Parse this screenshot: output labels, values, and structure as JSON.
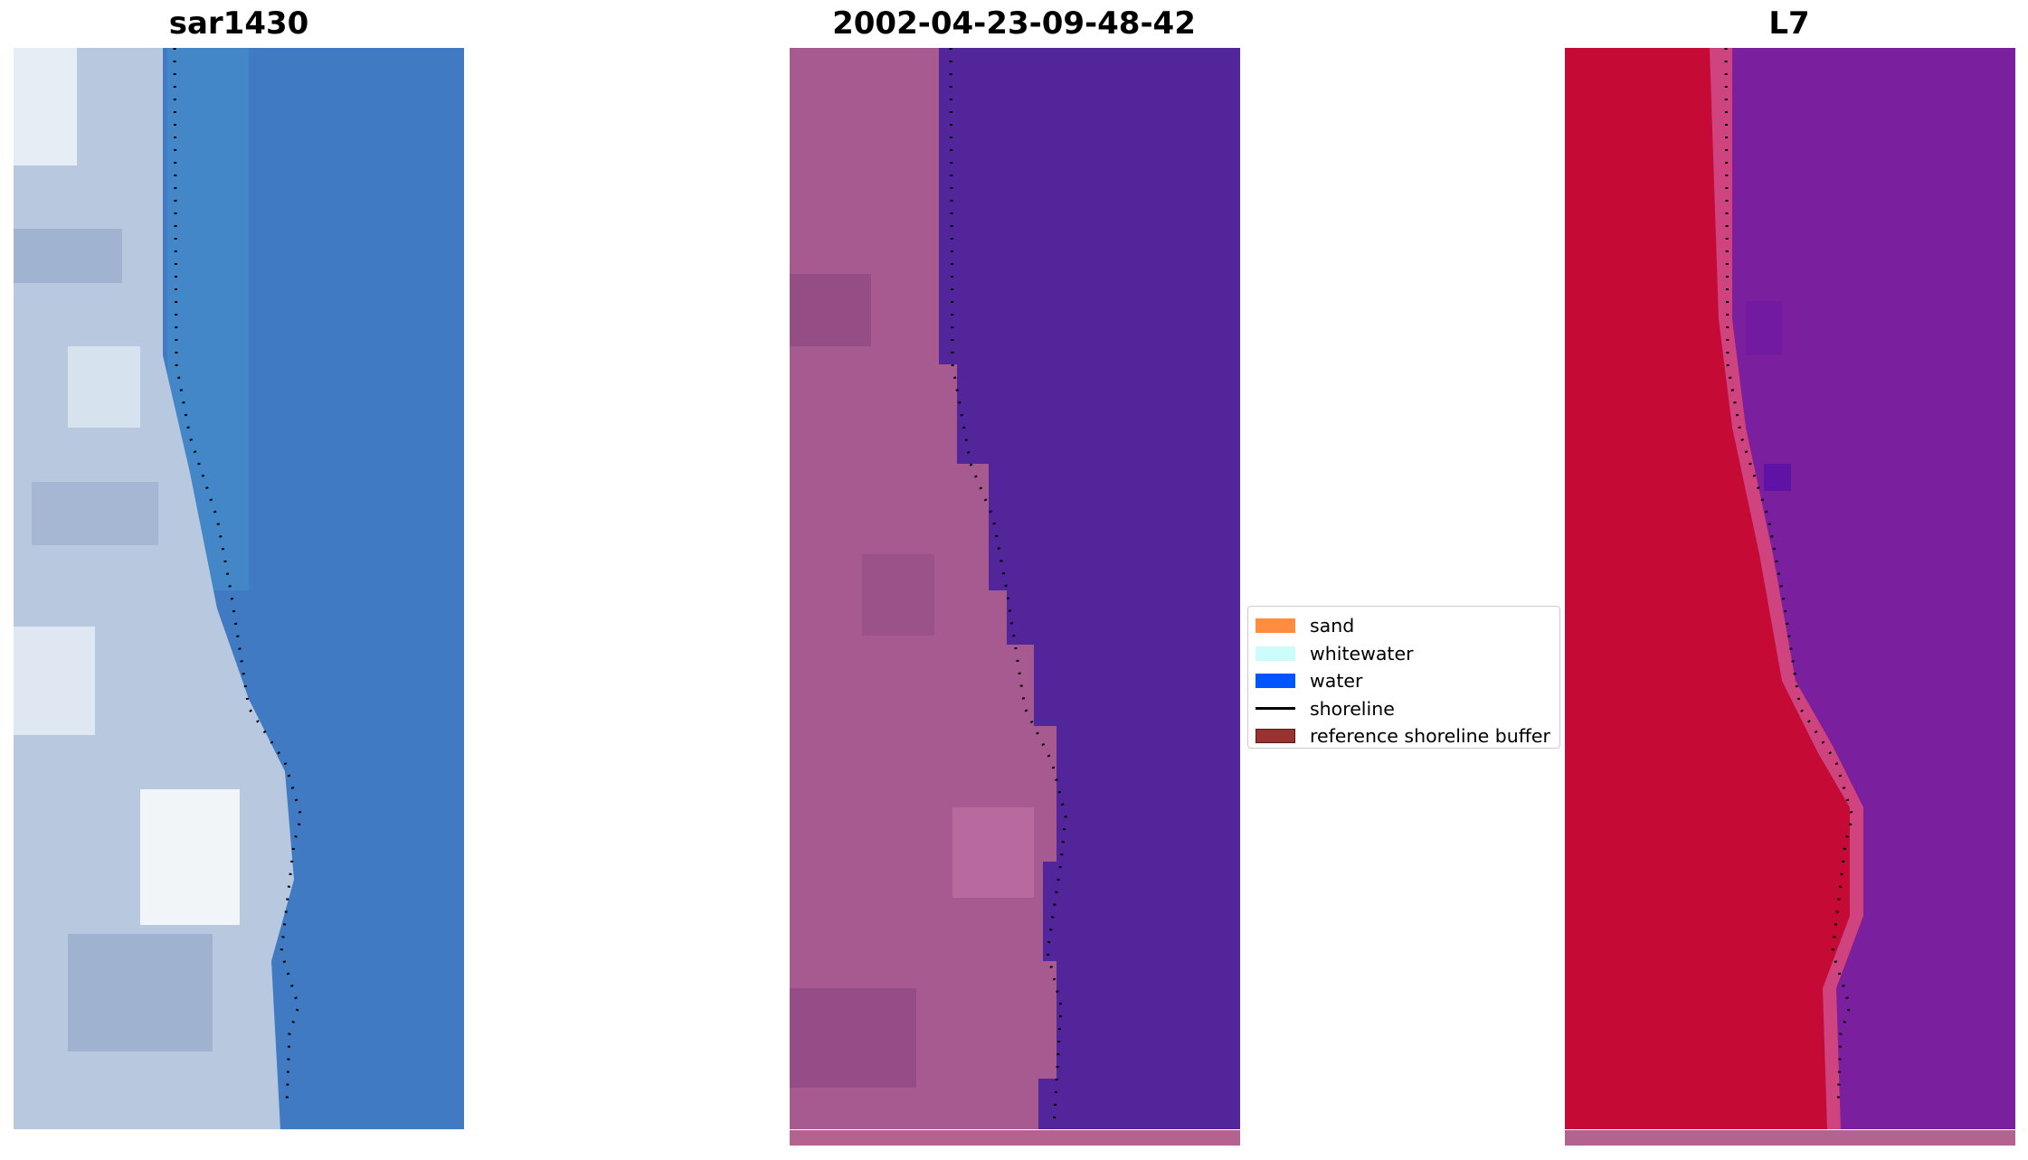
{
  "panels": [
    {
      "title": "sar1430",
      "image": "rgb-image"
    },
    {
      "title": "2002-04-23-09-48-42",
      "image": "classified-image"
    },
    {
      "title": "L7",
      "image": "mndwi-image"
    }
  ],
  "legend": [
    {
      "label": "sand",
      "color": "#ff8c3f"
    },
    {
      "label": "whitewater",
      "color": "#ccfcfc"
    },
    {
      "label": "water",
      "color": "#0055ff"
    },
    {
      "label": "shoreline",
      "color": "#000000"
    },
    {
      "label": "reference shoreline buffer",
      "color": "#9b3232"
    }
  ],
  "colors": {
    "water_rgb": "#3f7ac2",
    "land_rgb": "#b8c8de",
    "water_classified": "#53259a",
    "land_classified": "#a65a8f",
    "water_index": "#7a1f9e",
    "land_index": "#c40a35",
    "buffer_strip": "#b4628f"
  }
}
